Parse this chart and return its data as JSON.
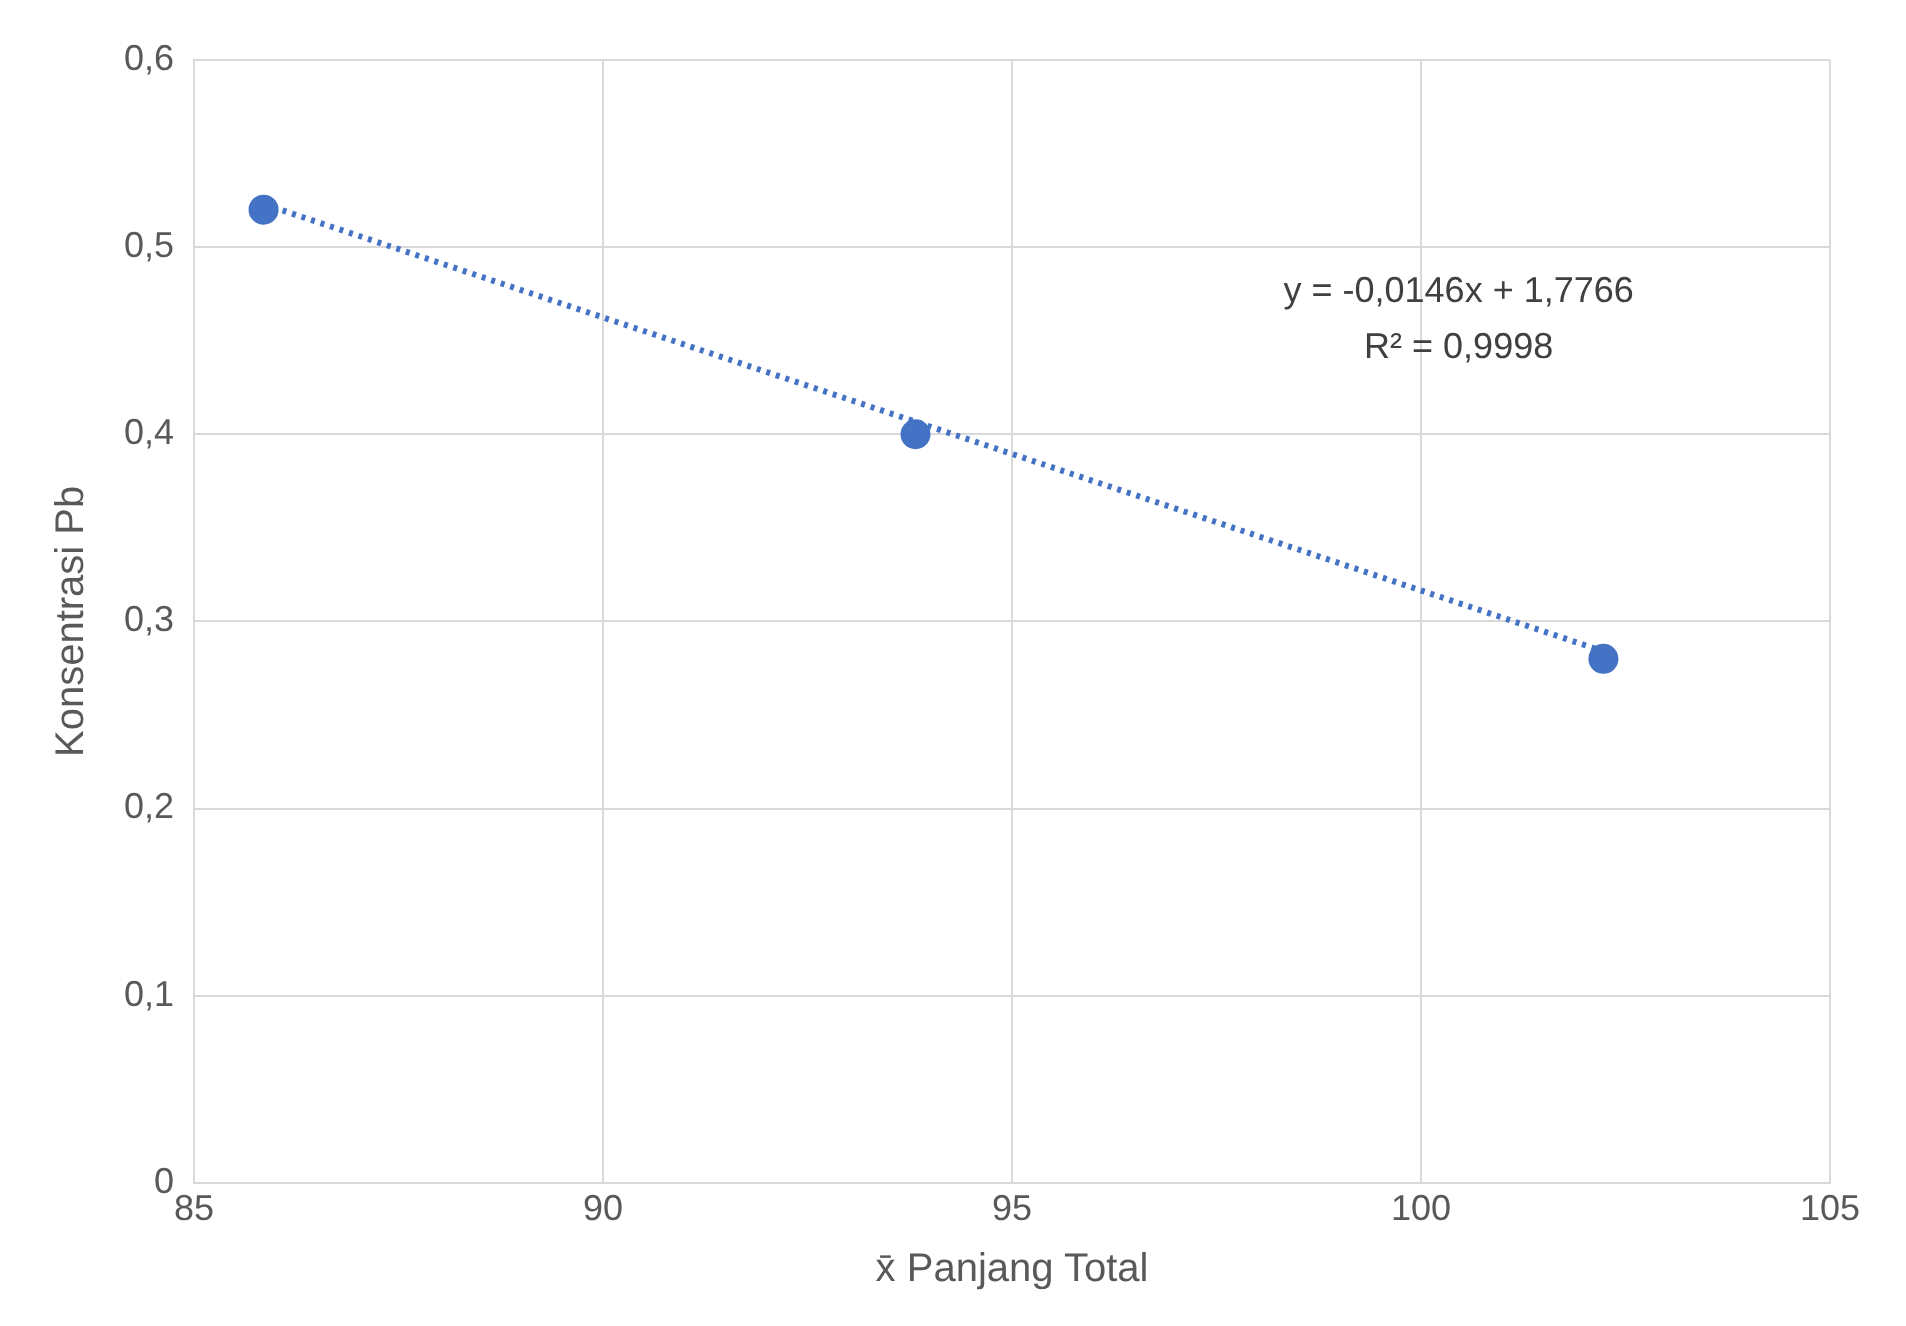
{
  "chart_data": {
    "type": "scatter",
    "xlabel": "x̄ Panjang Total",
    "ylabel": "Konsentrasi Pb",
    "series": [
      {
        "type": "scatter",
        "color": "#4472c4",
        "x": [
          85.85,
          93.82,
          102.23
        ],
        "values": [
          0.52,
          0.4,
          0.28
        ]
      },
      {
        "type": "line",
        "color": "#4472c4",
        "line_style": "dotted",
        "marker": "none",
        "x": [
          85.85,
          102.23
        ],
        "values": [
          0.523,
          0.284
        ]
      }
    ],
    "xlim": [
      85,
      105
    ],
    "xticks": [
      85,
      90,
      95,
      100,
      105
    ],
    "ylim": [
      0,
      0.6
    ],
    "yticks": [
      {
        "value": 0,
        "label": "0"
      },
      {
        "value": 0.1,
        "label": "0,1"
      },
      {
        "value": 0.2,
        "label": "0,2"
      },
      {
        "value": 0.3,
        "label": "0,3"
      },
      {
        "value": 0.4,
        "label": "0,4"
      },
      {
        "value": 0.5,
        "label": "0,5"
      },
      {
        "value": 0.6,
        "label": "0,6"
      }
    ],
    "grid": true,
    "legend": false,
    "marker": "circle",
    "annotations": [
      "y = -0,0146x + 1,7766",
      "R² = 0,9998"
    ]
  }
}
